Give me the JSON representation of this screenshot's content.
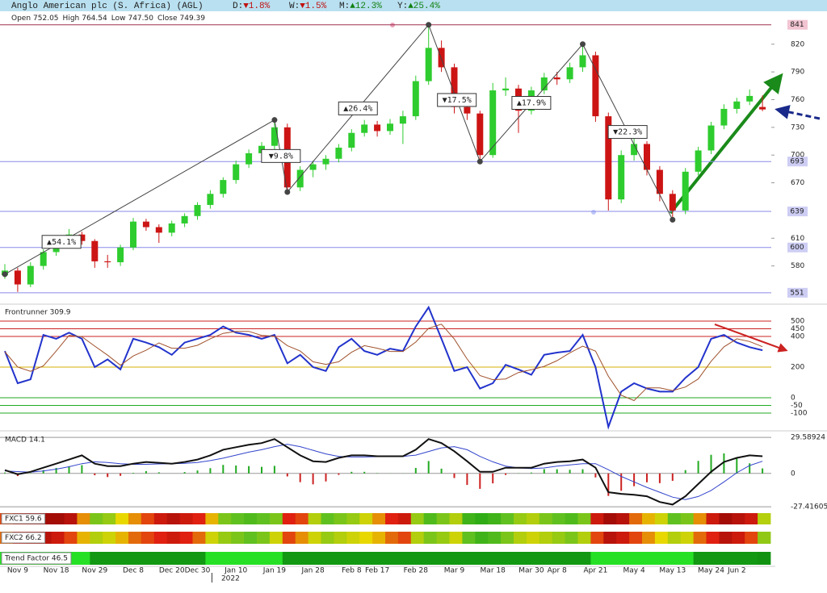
{
  "header": {
    "title": "Anglo American plc (S. Africa) (AGL)",
    "stats": [
      {
        "label": "D:",
        "value": "▼1.8%",
        "color": "#c01010"
      },
      {
        "label": "W:",
        "value": "▼1.5%",
        "color": "#c01010"
      },
      {
        "label": "M:",
        "value": "▲12.3%",
        "color": "#108010"
      },
      {
        "label": "Y:",
        "value": "▲25.4%",
        "color": "#108010"
      }
    ],
    "info": [
      {
        "label": "Open",
        "value": "752.05"
      },
      {
        "label": "High",
        "value": "764.54"
      },
      {
        "label": "Low",
        "value": "747.50"
      },
      {
        "label": "Close",
        "value": "749.39"
      }
    ]
  },
  "chart_data": [
    {
      "type": "candlestick",
      "up_color": "#2ecc2e",
      "down_color": "#cc1414",
      "ylim": [
        543,
        846
      ],
      "yticks": [
        580,
        610,
        670,
        700,
        730,
        760,
        790,
        820
      ],
      "levels": [
        {
          "value": 841,
          "color": "#a03050",
          "box": "#f2c4d2"
        },
        {
          "value": 693,
          "color": "#8a8ae8",
          "box": "#cdcdf4"
        },
        {
          "value": 639,
          "color": "#8a8ae8",
          "box": "#cdcdf4"
        },
        {
          "value": 600,
          "color": "#8a8ae8",
          "box": "#cdcdf4"
        },
        {
          "value": 551,
          "color": "#8a8ae8",
          "box": "#cdcdf4"
        }
      ],
      "categories": [
        null,
        "Nov 9",
        null,
        null,
        "Nov 18",
        null,
        null,
        "Nov 29",
        null,
        null,
        "Dec 8",
        null,
        null,
        "Dec 20",
        null,
        "Dec 30",
        null,
        null,
        "Jan 10",
        null,
        null,
        "Jan 19",
        null,
        null,
        "Jan 28",
        null,
        null,
        "Feb 8",
        null,
        "Feb 17",
        null,
        null,
        "Feb 28",
        null,
        null,
        "Mar 9",
        null,
        null,
        "Mar 18",
        null,
        null,
        "Mar 30",
        null,
        "Apr 8",
        null,
        null,
        "Apr 21",
        null,
        null,
        "May 4",
        null,
        null,
        "May 13",
        null,
        null,
        "May 24",
        null,
        "Jun 2",
        null,
        null
      ],
      "year_label": "2022",
      "open": [
        570,
        575,
        560,
        580,
        595,
        604,
        614,
        607,
        585,
        584,
        600,
        628,
        622,
        616,
        626,
        634,
        646,
        658,
        673,
        690,
        702,
        710,
        730,
        665,
        684,
        690,
        696,
        708,
        724,
        733,
        726,
        734,
        742,
        780,
        816,
        795,
        752,
        745,
        700,
        770,
        772,
        748,
        770,
        784,
        782,
        795,
        808,
        742,
        652,
        700,
        712,
        684,
        658,
        640,
        682,
        705,
        732,
        750,
        758,
        752.05
      ],
      "high": [
        582,
        578,
        584,
        598,
        608,
        620,
        617,
        609,
        592,
        603,
        632,
        631,
        625,
        629,
        637,
        649,
        662,
        676,
        694,
        706,
        714,
        741,
        734,
        688,
        694,
        700,
        712,
        728,
        738,
        737,
        739,
        748,
        786,
        841,
        824,
        799,
        760,
        748,
        778,
        784,
        776,
        774,
        789,
        790,
        800,
        820,
        812,
        746,
        705,
        718,
        715,
        688,
        662,
        686,
        709,
        736,
        755,
        762,
        771,
        764.54
      ],
      "low": [
        566,
        552,
        557,
        576,
        591,
        600,
        603,
        578,
        578,
        580,
        597,
        618,
        605,
        612,
        622,
        630,
        642,
        654,
        669,
        686,
        698,
        706,
        660,
        661,
        676,
        684,
        692,
        704,
        720,
        720,
        722,
        712,
        738,
        776,
        790,
        745,
        738,
        693,
        697,
        764,
        724,
        744,
        766,
        776,
        778,
        790,
        736,
        640,
        648,
        694,
        678,
        650,
        630,
        636,
        678,
        701,
        728,
        745,
        754,
        747.5
      ],
      "close": [
        575,
        560,
        580,
        595,
        604,
        614,
        607,
        585,
        584,
        600,
        628,
        622,
        616,
        626,
        634,
        646,
        658,
        673,
        690,
        702,
        710,
        730,
        665,
        684,
        690,
        696,
        708,
        724,
        733,
        726,
        734,
        742,
        780,
        816,
        795,
        752,
        745,
        700,
        770,
        772,
        748,
        770,
        784,
        782,
        795,
        808,
        742,
        652,
        700,
        712,
        684,
        658,
        640,
        682,
        705,
        732,
        750,
        758,
        764,
        749.39
      ],
      "zigzag": {
        "x": [
          0,
          21,
          22,
          33,
          37,
          45,
          52
        ],
        "values": [
          571,
          738,
          660,
          841,
          693,
          820,
          630
        ],
        "color": "#444"
      },
      "annotations": [
        {
          "text": "▲54.1%",
          "color": "#107010"
        },
        {
          "text": "▼9.8%",
          "color": "#c01010"
        },
        {
          "text": "▲26.4%",
          "color": "#107010"
        },
        {
          "text": "▼17.5%",
          "color": "#c01010"
        },
        {
          "text": "▲17.9%",
          "color": "#107010"
        },
        {
          "text": "▼22.3%",
          "color": "#c01010"
        }
      ]
    },
    {
      "type": "line",
      "title": "Frontrunner 309.9",
      "ylim": [
        -205,
        600
      ],
      "levels": [
        {
          "value": 500,
          "color": "#cc2222"
        },
        {
          "value": 450,
          "color": "#cc2222"
        },
        {
          "value": 400,
          "color": "#cc2222"
        },
        {
          "value": 200,
          "color": "#d4b000"
        },
        {
          "value": 0,
          "color": "#22aa22"
        },
        {
          "value": -50,
          "color": "#22aa22"
        },
        {
          "value": -100,
          "color": "#22aa22"
        }
      ],
      "series": [
        {
          "color": "#2233cc",
          "width": 2,
          "values": [
            305,
            95,
            120,
            410,
            385,
            425,
            385,
            200,
            250,
            185,
            385,
            360,
            330,
            280,
            360,
            385,
            410,
            465,
            425,
            410,
            385,
            410,
            225,
            280,
            200,
            175,
            330,
            385,
            305,
            280,
            320,
            305,
            465,
            590,
            385,
            175,
            200,
            60,
            95,
            215,
            185,
            150,
            280,
            295,
            305,
            410,
            200,
            -190,
            40,
            95,
            60,
            40,
            40,
            130,
            200,
            385,
            410,
            360,
            330,
            309.9
          ]
        },
        {
          "color": "#a0522d",
          "width": 1,
          "values": [
            300,
            200,
            173,
            208,
            305,
            407,
            398,
            337,
            278,
            212,
            273,
            310,
            358,
            323,
            323,
            342,
            385,
            420,
            433,
            433,
            407,
            402,
            340,
            305,
            235,
            218,
            235,
            297,
            340,
            323,
            302,
            302,
            363,
            453,
            480,
            383,
            253,
            145,
            118,
            123,
            165,
            183,
            205,
            242,
            293,
            337,
            305,
            140,
            17,
            -18,
            65,
            65,
            47,
            70,
            123,
            238,
            332,
            385,
            367,
            333
          ]
        }
      ]
    },
    {
      "type": "line",
      "title": "MACD 14.1",
      "ylim": [
        -30,
        33
      ],
      "levels": [
        {
          "value": 29.58924,
          "color": "#999999"
        },
        {
          "value": 0,
          "color": "#999999"
        },
        {
          "value": -27.41605,
          "color": "#999999"
        }
      ],
      "series": [
        {
          "style": "bar",
          "up_color": "#22aa22",
          "down_color": "#cc2222",
          "values": [
            0.7,
            -2.2,
            0.3,
            2.7,
            4.5,
            5.9,
            6.8,
            -1.5,
            -3,
            -2,
            0.5,
            1.9,
            0.9,
            0,
            1.1,
            2.4,
            4.3,
            7,
            6.5,
            6,
            5.4,
            6.2,
            -2.5,
            -7.2,
            -9,
            -6.6,
            -1.2,
            1.3,
            1.3,
            0.3,
            0.1,
            0.1,
            4.5,
            10.2,
            3.9,
            -3.8,
            -9.5,
            -12.7,
            -8.2,
            -1.3,
            0.2,
            0.7,
            3.5,
            3.4,
            3,
            3.4,
            -3.3,
            -18.5,
            -14.3,
            -10.5,
            -7.3,
            -8,
            -6.1,
            2.7,
            10.3,
            15.3,
            16.4,
            12.3,
            8.3,
            4.1
          ]
        },
        {
          "color": "#3344cc",
          "width": 1,
          "values": [
            2,
            1.5,
            1,
            2,
            3.5,
            5.5,
            8,
            9.5,
            9,
            8,
            7.5,
            7.5,
            7.8,
            8,
            8.3,
            9,
            10.5,
            12.5,
            15,
            17.5,
            19.5,
            22,
            24,
            22,
            19,
            16,
            14,
            13.5,
            13.5,
            13.8,
            14,
            14,
            15,
            18,
            21,
            22,
            19.5,
            14,
            9.5,
            6,
            4.5,
            4,
            4.5,
            6,
            7,
            8,
            8,
            3,
            -2.5,
            -7,
            -11.5,
            -15.5,
            -19.5,
            -21.5,
            -19,
            -14,
            -7,
            0.5,
            6.5,
            10
          ]
        },
        {
          "color": "#111111",
          "width": 2,
          "values": [
            2.7,
            -0.7,
            1.3,
            4.7,
            8,
            11.4,
            14.8,
            8,
            6,
            6,
            8,
            9.4,
            8.7,
            8,
            9.4,
            11.4,
            14.8,
            19.5,
            21.5,
            23.5,
            24.9,
            28.2,
            21.5,
            14.8,
            10,
            9.4,
            12.8,
            14.8,
            14.8,
            14.1,
            14.1,
            14.1,
            19.5,
            28.2,
            24.9,
            18.2,
            10,
            1.3,
            1.3,
            4.7,
            4.7,
            4.7,
            8,
            9.4,
            10,
            11.4,
            4.7,
            -15.5,
            -16.8,
            -17.5,
            -18.8,
            -23.5,
            -25.6,
            -18.8,
            -8.7,
            1.3,
            9.4,
            12.8,
            14.8,
            14.1
          ]
        }
      ]
    },
    {
      "type": "heatmap",
      "title": "FXC1 59.6",
      "scale": [
        0,
        100
      ],
      "color_stops": [
        "#7a0000",
        "#e02010",
        "#e8d800",
        "#60c020",
        "#10a010"
      ],
      "values": [
        30,
        20,
        15,
        10,
        10,
        15,
        40,
        70,
        65,
        50,
        40,
        30,
        20,
        15,
        20,
        25,
        45,
        70,
        75,
        80,
        75,
        70,
        25,
        30,
        60,
        75,
        70,
        65,
        55,
        40,
        25,
        20,
        65,
        80,
        70,
        60,
        85,
        90,
        85,
        75,
        65,
        60,
        70,
        75,
        80,
        70,
        20,
        10,
        15,
        35,
        45,
        55,
        75,
        70,
        40,
        20,
        10,
        15,
        20,
        59.6
      ]
    },
    {
      "type": "heatmap",
      "title": "FXC2 66.2",
      "scale": [
        0,
        100
      ],
      "color_stops": [
        "#7a0000",
        "#e02010",
        "#e8d800",
        "#60c020",
        "#10a010"
      ],
      "values": [
        35,
        25,
        20,
        15,
        20,
        30,
        45,
        60,
        55,
        45,
        35,
        30,
        25,
        20,
        25,
        35,
        55,
        65,
        70,
        75,
        70,
        55,
        30,
        40,
        55,
        65,
        60,
        55,
        50,
        45,
        35,
        30,
        60,
        70,
        65,
        55,
        75,
        85,
        80,
        70,
        60,
        55,
        60,
        65,
        70,
        60,
        30,
        15,
        20,
        30,
        40,
        50,
        60,
        55,
        35,
        25,
        15,
        20,
        30,
        66.2
      ]
    },
    {
      "type": "heatmap",
      "title": "Trend Factor 46.5",
      "scale": [
        40,
        100
      ],
      "color_stops": [
        "#0e8a0e",
        "#26e026"
      ],
      "values": [
        100,
        100,
        100,
        100,
        100,
        100,
        100,
        50,
        50,
        50,
        50,
        50,
        50,
        50,
        50,
        50,
        100,
        100,
        100,
        100,
        100,
        100,
        50,
        50,
        50,
        50,
        50,
        50,
        50,
        50,
        50,
        50,
        50,
        50,
        50,
        50,
        50,
        50,
        50,
        50,
        50,
        50,
        50,
        50,
        50,
        50,
        100,
        100,
        100,
        100,
        100,
        100,
        100,
        100,
        50,
        50,
        50,
        50,
        50,
        46.5
      ]
    }
  ]
}
